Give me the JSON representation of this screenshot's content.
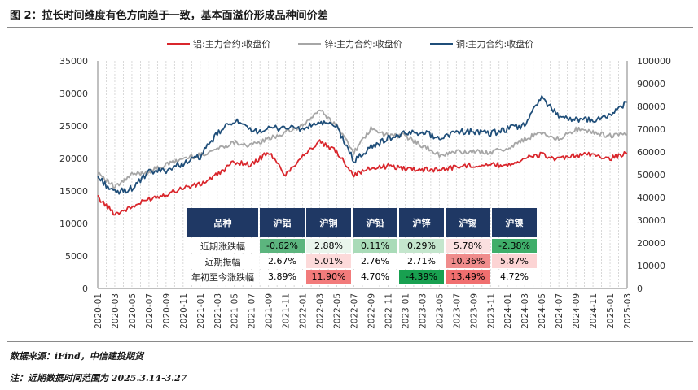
{
  "figure_title": "图 2：拉长时间维度有色方向趋于一致，基本面溢价形成品种间价差",
  "source_text": "数据来源：iFind，中信建投期货",
  "note_text": "注：近期数据时间范围为 2025.3.14-3.27",
  "colors": {
    "aluminum": "#d9262c",
    "zinc": "#a6a6a6",
    "copper": "#1f4e79",
    "header_bg": "#1f3864"
  },
  "chart_data": {
    "type": "line",
    "title": "",
    "x_dates": [
      "2020-01",
      "2020-03",
      "2020-05",
      "2020-07",
      "2020-09",
      "2020-11",
      "2021-01",
      "2021-03",
      "2021-05",
      "2021-07",
      "2021-09",
      "2021-11",
      "2022-01",
      "2022-03",
      "2022-05",
      "2022-07",
      "2022-09",
      "2022-11",
      "2023-01",
      "2023-03",
      "2023-05",
      "2023-07",
      "2023-09",
      "2023-11",
      "2024-01",
      "2024-03",
      "2024-05",
      "2024-07",
      "2024-09",
      "2024-11",
      "2025-01",
      "2025-03"
    ],
    "y_left_ticks": [
      "0",
      "5000",
      "10000",
      "15000",
      "20000",
      "25000",
      "30000",
      "35000"
    ],
    "y_left_range": [
      0,
      35000
    ],
    "y_right_ticks": [
      "0",
      "10000",
      "20000",
      "30000",
      "40000",
      "50000",
      "60000",
      "70000",
      "80000",
      "90000",
      "100000"
    ],
    "y_right_range": [
      0,
      100000
    ],
    "series": [
      {
        "name": "铝:主力合约:收盘价",
        "axis": "left",
        "color": "#d9262c",
        "values": [
          14000,
          11500,
          12500,
          13800,
          14500,
          15500,
          16000,
          17500,
          19500,
          19000,
          21000,
          17500,
          20500,
          22500,
          21000,
          17500,
          18500,
          18800,
          18500,
          18300,
          18300,
          18700,
          19000,
          19000,
          19000,
          20000,
          20600,
          19800,
          20500,
          20600,
          20000,
          20800
        ]
      },
      {
        "name": "锌:主力合约:收盘价",
        "axis": "left",
        "color": "#a6a6a6",
        "values": [
          18000,
          15500,
          17500,
          18000,
          19000,
          20000,
          20500,
          21500,
          22500,
          22000,
          23000,
          24000,
          25000,
          27500,
          25000,
          21000,
          24500,
          23500,
          23500,
          22000,
          20500,
          21000,
          21000,
          21000,
          21500,
          23000,
          24000,
          23000,
          24500,
          24000,
          23500,
          23700
        ]
      },
      {
        "name": "铜:主力合约:收盘价",
        "axis": "right",
        "color": "#1f4e79",
        "values": [
          49000,
          42000,
          44000,
          51000,
          52000,
          55000,
          58000,
          68000,
          74000,
          69000,
          70000,
          71000,
          70000,
          73000,
          71000,
          56000,
          62000,
          66000,
          68000,
          69000,
          66000,
          69000,
          69000,
          68000,
          70000,
          72000,
          84000,
          76000,
          74000,
          74000,
          76000,
          82000
        ]
      }
    ]
  },
  "stats_table": {
    "headers": [
      "品种",
      "沪铝",
      "沪铜",
      "沪铅",
      "沪锌",
      "沪锡",
      "沪镍"
    ],
    "rows": [
      {
        "label": "近期涨跌幅",
        "cells": [
          {
            "text": "-0.62%",
            "bg": "#5cb57e",
            "fg": "#000"
          },
          {
            "text": "2.88%",
            "bg": "#e9f5ec",
            "fg": "#000"
          },
          {
            "text": "0.11%",
            "bg": "#a9dbb8",
            "fg": "#000"
          },
          {
            "text": "0.29%",
            "bg": "#c4e6cd",
            "fg": "#000"
          },
          {
            "text": "5.78%",
            "bg": "#fbe0e0",
            "fg": "#000"
          },
          {
            "text": "-2.38%",
            "bg": "#3fae6a",
            "fg": "#000"
          }
        ]
      },
      {
        "label": "近期振幅",
        "cells": [
          {
            "text": "2.67%",
            "bg": "#ffffff",
            "fg": "#000"
          },
          {
            "text": "5.01%",
            "bg": "#fcdada",
            "fg": "#000"
          },
          {
            "text": "2.76%",
            "bg": "#ffffff",
            "fg": "#000"
          },
          {
            "text": "2.71%",
            "bg": "#ffffff",
            "fg": "#000"
          },
          {
            "text": "10.36%",
            "bg": "#f08c8c",
            "fg": "#000"
          },
          {
            "text": "5.87%",
            "bg": "#fcd4d4",
            "fg": "#000"
          }
        ]
      },
      {
        "label": "年初至今涨跌幅",
        "cells": [
          {
            "text": "3.89%",
            "bg": "#ffffff",
            "fg": "#000"
          },
          {
            "text": "11.90%",
            "bg": "#f27b7b",
            "fg": "#000"
          },
          {
            "text": "4.70%",
            "bg": "#ffffff",
            "fg": "#000"
          },
          {
            "text": "-4.39%",
            "bg": "#18a050",
            "fg": "#000"
          },
          {
            "text": "13.49%",
            "bg": "#f06f6f",
            "fg": "#000"
          },
          {
            "text": "4.72%",
            "bg": "#ffffff",
            "fg": "#000"
          }
        ]
      }
    ]
  }
}
